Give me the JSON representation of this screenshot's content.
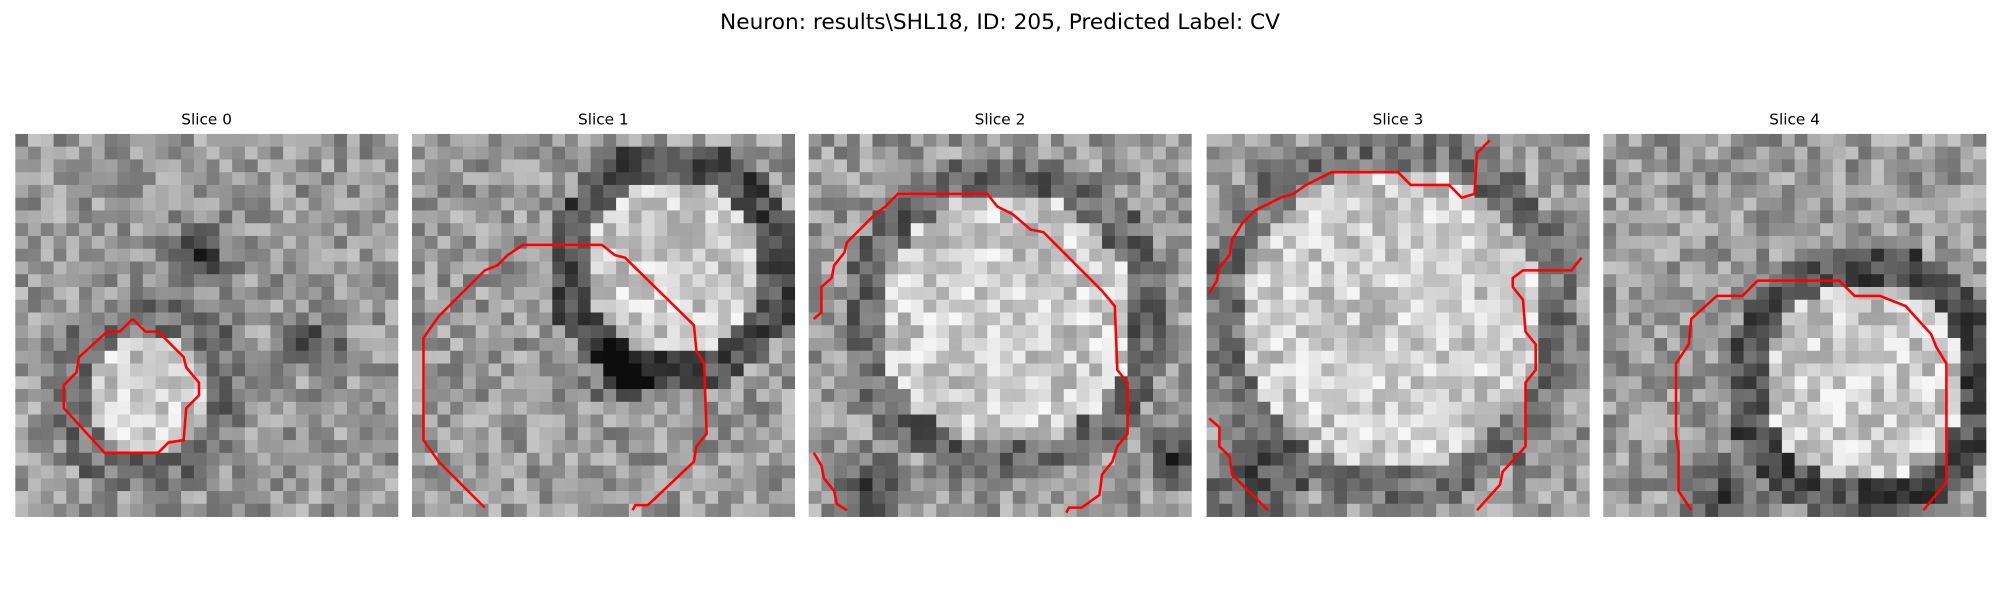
{
  "title": "Neuron: results\\SHL18, ID: 205, Predicted Label: CV",
  "panels": [
    {
      "title": "Slice 0"
    },
    {
      "title": "Slice 1"
    },
    {
      "title": "Slice 2"
    },
    {
      "title": "Slice 3"
    },
    {
      "title": "Slice 4"
    }
  ]
}
